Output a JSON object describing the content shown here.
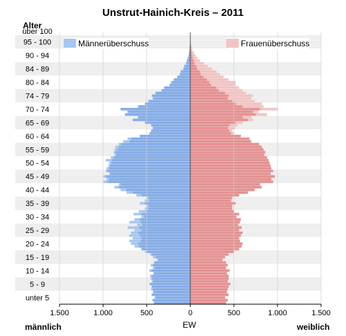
{
  "chart_data": {
    "type": "bar",
    "orientation": "horizontal-population-pyramid",
    "title": "Unstrut-Hainich-Kreis – 2011",
    "y_axis_title": "Alter",
    "x_axis_title": "EW",
    "left_label": "männlich",
    "right_label": "weiblich",
    "x_ticks": [
      "1.500",
      "1.000",
      "500",
      "0",
      "500",
      "1.000",
      "1.500"
    ],
    "xlim": [
      -1500,
      1500
    ],
    "age_group_labels": [
      "unter 5",
      "5 - 9",
      "10 - 14",
      "15 - 19",
      "20 - 24",
      "25 - 29",
      "30 - 34",
      "35 - 39",
      "40 - 44",
      "45 - 49",
      "50 - 54",
      "55 - 59",
      "60 - 64",
      "65 - 69",
      "70 - 74",
      "74 - 79",
      "80 - 84",
      "84 - 89",
      "90 - 94",
      "95 - 100",
      "über 100"
    ],
    "legend": [
      {
        "name": "Männerüberschuss",
        "color": "#a8c6ef"
      },
      {
        "name": "Frauenüberschuss",
        "color": "#f1c4c4"
      }
    ],
    "colors": {
      "male": "#86ade6",
      "male_surplus": "#a8c6ef",
      "female": "#e49292",
      "female_surplus": "#f1c4c4",
      "band": "#eeeeee"
    },
    "grid": true,
    "ages": [
      0,
      1,
      2,
      3,
      4,
      5,
      6,
      7,
      8,
      9,
      10,
      11,
      12,
      13,
      14,
      15,
      16,
      17,
      18,
      19,
      20,
      21,
      22,
      23,
      24,
      25,
      26,
      27,
      28,
      29,
      30,
      31,
      32,
      33,
      34,
      35,
      36,
      37,
      38,
      39,
      40,
      41,
      42,
      43,
      44,
      45,
      46,
      47,
      48,
      49,
      50,
      51,
      52,
      53,
      54,
      55,
      56,
      57,
      58,
      59,
      60,
      61,
      62,
      63,
      64,
      65,
      66,
      67,
      68,
      69,
      70,
      71,
      72,
      73,
      74,
      75,
      76,
      77,
      78,
      79,
      80,
      81,
      82,
      83,
      84,
      85,
      86,
      87,
      88,
      89,
      90,
      91,
      92,
      93,
      94,
      95,
      96,
      97,
      98,
      99,
      100
    ],
    "male": [
      420,
      435,
      410,
      445,
      430,
      450,
      445,
      470,
      440,
      455,
      460,
      420,
      470,
      430,
      455,
      420,
      380,
      430,
      460,
      520,
      560,
      640,
      680,
      700,
      660,
      700,
      680,
      640,
      720,
      610,
      700,
      640,
      560,
      650,
      590,
      520,
      500,
      580,
      520,
      500,
      620,
      730,
      800,
      870,
      820,
      1000,
      960,
      1000,
      930,
      970,
      960,
      940,
      930,
      970,
      910,
      870,
      880,
      870,
      860,
      820,
      770,
      720,
      580,
      470,
      450,
      430,
      450,
      520,
      660,
      600,
      750,
      720,
      800,
      600,
      520,
      480,
      430,
      440,
      400,
      330,
      300,
      240,
      220,
      190,
      150,
      120,
      110,
      80,
      70,
      50,
      40,
      30,
      20,
      15,
      10,
      8,
      6,
      4,
      2,
      2,
      1
    ],
    "female": [
      410,
      430,
      400,
      440,
      420,
      430,
      440,
      460,
      430,
      440,
      440,
      420,
      450,
      410,
      430,
      410,
      370,
      400,
      440,
      500,
      560,
      590,
      600,
      570,
      560,
      580,
      600,
      560,
      590,
      550,
      570,
      580,
      530,
      560,
      500,
      480,
      480,
      520,
      470,
      480,
      560,
      660,
      740,
      820,
      800,
      950,
      930,
      970,
      920,
      950,
      930,
      920,
      910,
      900,
      880,
      850,
      860,
      840,
      820,
      790,
      700,
      680,
      580,
      500,
      480,
      510,
      540,
      600,
      720,
      700,
      880,
      780,
      1000,
      840,
      820,
      740,
      700,
      720,
      640,
      600,
      560,
      520,
      520,
      440,
      380,
      340,
      300,
      250,
      200,
      160,
      110,
      80,
      60,
      40,
      25,
      15,
      10,
      6,
      3,
      2,
      1
    ]
  }
}
